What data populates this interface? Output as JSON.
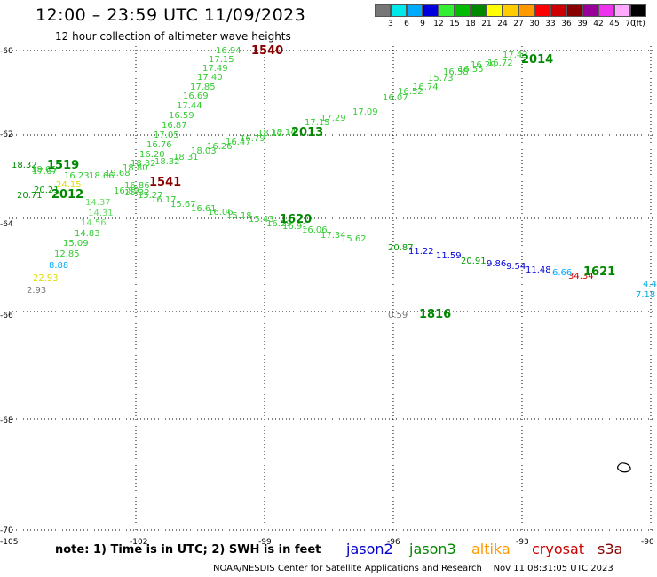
{
  "header": {
    "title": "12:00 – 23:59 UTC 11/09/2023",
    "subtitle": "12 hour collection of altimeter wave heights"
  },
  "legend": {
    "colors": [
      "#777777",
      "#00e8e8",
      "#00aaff",
      "#0000dd",
      "#33ee33",
      "#00bb00",
      "#008800",
      "#ffff00",
      "#ffcc00",
      "#ff9900",
      "#ff0000",
      "#cc0000",
      "#880000",
      "#990099",
      "#ee33ee",
      "#ffaaff",
      "#000000"
    ],
    "labels": [
      "3",
      "6",
      "9",
      "12",
      "15",
      "18",
      "21",
      "24",
      "27",
      "30",
      "33",
      "36",
      "39",
      "42",
      "45",
      "70",
      "(ft)"
    ]
  },
  "axes": {
    "y_ticks": [
      "-60",
      "-62",
      "-64",
      "-66",
      "-68",
      "-70"
    ],
    "x_ticks": [
      "-105",
      "-102",
      "-99",
      "-96",
      "-93",
      "-90"
    ]
  },
  "passes": [
    {
      "label": "1540",
      "color": "#880000"
    },
    {
      "label": "2014",
      "color": "#008800"
    },
    {
      "label": "2013",
      "color": "#008800"
    },
    {
      "label": "1519",
      "color": "#008800"
    },
    {
      "label": "2012",
      "color": "#008800"
    },
    {
      "label": "1541",
      "color": "#880000"
    },
    {
      "label": "1620",
      "color": "#008800"
    },
    {
      "label": "1621",
      "color": "#008800"
    },
    {
      "label": "1816",
      "color": "#008800"
    }
  ],
  "observations": [
    {
      "v": "16.94",
      "c": "#33cc33"
    },
    {
      "v": "17.15",
      "c": "#33cc33"
    },
    {
      "v": "17.49",
      "c": "#33cc33"
    },
    {
      "v": "17.40",
      "c": "#33cc33"
    },
    {
      "v": "17.85",
      "c": "#33cc33"
    },
    {
      "v": "16.69",
      "c": "#33cc33"
    },
    {
      "v": "17.44",
      "c": "#33cc33"
    },
    {
      "v": "16.59",
      "c": "#33cc33"
    },
    {
      "v": "16.87",
      "c": "#33cc33"
    },
    {
      "v": "17.05",
      "c": "#33cc33"
    },
    {
      "v": "16.76",
      "c": "#33cc33"
    },
    {
      "v": "16.20",
      "c": "#33cc33"
    },
    {
      "v": "17.43",
      "c": "#33cc33"
    },
    {
      "v": "16.72",
      "c": "#33cc33"
    },
    {
      "v": "16.29",
      "c": "#33cc33"
    },
    {
      "v": "16.55",
      "c": "#33cc33"
    },
    {
      "v": "16.58",
      "c": "#33cc33"
    },
    {
      "v": "15.73",
      "c": "#33cc33"
    },
    {
      "v": "16.74",
      "c": "#33cc33"
    },
    {
      "v": "16.52",
      "c": "#33cc33"
    },
    {
      "v": "16.07",
      "c": "#33cc33"
    },
    {
      "v": "17.09",
      "c": "#33cc33"
    },
    {
      "v": "17.29",
      "c": "#33cc33"
    },
    {
      "v": "17.15",
      "c": "#33cc33"
    },
    {
      "v": "18.12",
      "c": "#33cc33"
    },
    {
      "v": "18.14",
      "c": "#33cc33"
    },
    {
      "v": "16.79",
      "c": "#33cc33"
    },
    {
      "v": "16.47",
      "c": "#33cc33"
    },
    {
      "v": "16.26",
      "c": "#33cc33"
    },
    {
      "v": "18.03",
      "c": "#33cc33"
    },
    {
      "v": "18.31",
      "c": "#33cc33"
    },
    {
      "v": "18.32",
      "c": "#33cc33"
    },
    {
      "v": "18.32",
      "c": "#33cc33"
    },
    {
      "v": "19.68",
      "c": "#33cc33"
    },
    {
      "v": "18.66",
      "c": "#33cc33"
    },
    {
      "v": "18.80",
      "c": "#33cc33"
    },
    {
      "v": "17.67",
      "c": "#33cc33"
    },
    {
      "v": "16.23",
      "c": "#33cc33"
    },
    {
      "v": "16.86",
      "c": "#33cc33"
    },
    {
      "v": "16.89",
      "c": "#33cc33"
    },
    {
      "v": "15.32",
      "c": "#33cc33"
    },
    {
      "v": "15.27",
      "c": "#33cc33"
    },
    {
      "v": "16.17",
      "c": "#33cc33"
    },
    {
      "v": "15.67",
      "c": "#33cc33"
    },
    {
      "v": "16.61",
      "c": "#33cc33"
    },
    {
      "v": "16.06",
      "c": "#33cc33"
    },
    {
      "v": "15.18",
      "c": "#33cc33"
    },
    {
      "v": "15.43",
      "c": "#33cc33"
    },
    {
      "v": "16.29",
      "c": "#33cc33"
    },
    {
      "v": "16.91",
      "c": "#33cc33"
    },
    {
      "v": "16.06",
      "c": "#33cc33"
    },
    {
      "v": "17.34",
      "c": "#33cc33"
    },
    {
      "v": "15.62",
      "c": "#33cc33"
    },
    {
      "v": "20.87",
      "c": "#009900"
    },
    {
      "v": "11.22",
      "c": "#0000dd"
    },
    {
      "v": "11.59",
      "c": "#0000dd"
    },
    {
      "v": "20.91",
      "c": "#009900"
    },
    {
      "v": "9.86",
      "c": "#0000dd"
    },
    {
      "v": "9.54",
      "c": "#0000dd"
    },
    {
      "v": "11.48",
      "c": "#0000dd"
    },
    {
      "v": "6.66",
      "c": "#00aaff"
    },
    {
      "v": "34.34",
      "c": "#cc0000"
    },
    {
      "v": "4.4",
      "c": "#00aadd"
    },
    {
      "v": "7.18",
      "c": "#00aadd"
    },
    {
      "v": "18.32",
      "c": "#008800"
    },
    {
      "v": "18.65",
      "c": "#33cc33"
    },
    {
      "v": "20.21",
      "c": "#009900"
    },
    {
      "v": "20.71",
      "c": "#009900"
    },
    {
      "v": "24.15",
      "c": "#dddd00"
    },
    {
      "v": "14.37",
      "c": "#66dd66"
    },
    {
      "v": "14.31",
      "c": "#66dd66"
    },
    {
      "v": "14.56",
      "c": "#66dd66"
    },
    {
      "v": "14.83",
      "c": "#33cc33"
    },
    {
      "v": "15.09",
      "c": "#33cc33"
    },
    {
      "v": "12.85",
      "c": "#33cc33"
    },
    {
      "v": "8.88",
      "c": "#00aaff"
    },
    {
      "v": "22.93",
      "c": "#dddd00"
    },
    {
      "v": "2.93",
      "c": "#777777"
    },
    {
      "v": "0.59",
      "c": "#777777"
    }
  ],
  "footer": {
    "note": "note: 1) Time is in UTC; 2) SWH is in feet",
    "satellites": [
      {
        "name": "jason2",
        "color": "#0000cc"
      },
      {
        "name": "jason3",
        "color": "#008800"
      },
      {
        "name": "altika",
        "color": "#ff9900"
      },
      {
        "name": "cryosat",
        "color": "#cc0000"
      },
      {
        "name": "s3a",
        "color": "#880000"
      }
    ],
    "credit": "NOAA/NESDIS Center for Satellite Applications and Research",
    "timestamp": "Nov 11 08:31:05 UTC 2023"
  }
}
